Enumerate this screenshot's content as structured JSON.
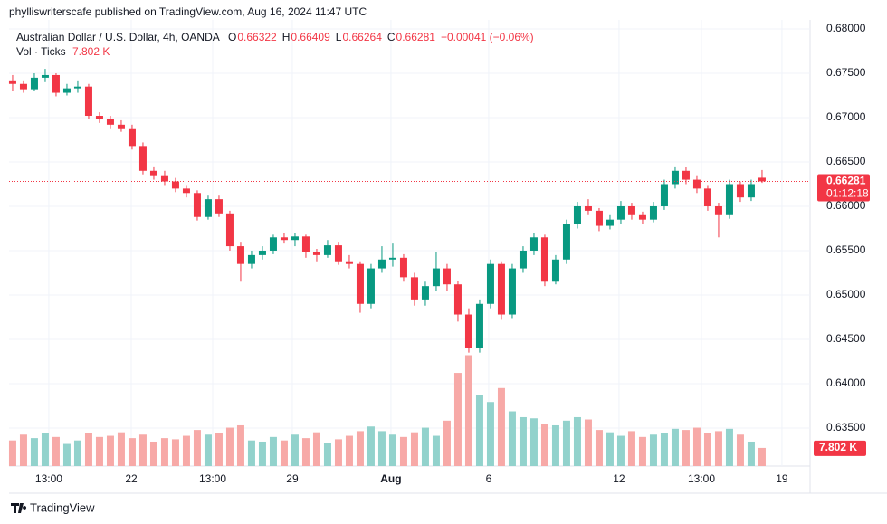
{
  "header": {
    "publisher": "phylliswriterscafe published on TradingView.com, Aug 16, 2024 11:47 UTC"
  },
  "footer": {
    "brand": "TradingView"
  },
  "chart_data": {
    "type": "candlestick",
    "symbol": "Australian Dollar / U.S. Dollar, 4h, OANDA",
    "ohlc_letters": [
      "O",
      "H",
      "L",
      "C"
    ],
    "change": "−0.00041 (−0.06%)",
    "volume_title": "Vol · Ticks",
    "last_volume_label": "7.802 K",
    "countdown": "01:12:18",
    "up_color": "#089981",
    "down_color": "#f23645",
    "volume_up_color": "#92d2cc",
    "volume_down_color": "#f7a9a7",
    "grid": true,
    "candles": [
      [
        0.6742,
        0.6748,
        0.673,
        0.6738
      ],
      [
        0.6738,
        0.6742,
        0.6728,
        0.6732
      ],
      [
        0.6732,
        0.675,
        0.673,
        0.6745
      ],
      [
        0.6745,
        0.6755,
        0.674,
        0.6748
      ],
      [
        0.6748,
        0.675,
        0.6724,
        0.6728
      ],
      [
        0.6728,
        0.6738,
        0.6725,
        0.6733
      ],
      [
        0.6733,
        0.6742,
        0.6728,
        0.6735
      ],
      [
        0.6735,
        0.6738,
        0.6698,
        0.6702
      ],
      [
        0.6702,
        0.6706,
        0.6694,
        0.6698
      ],
      [
        0.6698,
        0.6702,
        0.6688,
        0.6692
      ],
      [
        0.6692,
        0.6697,
        0.6684,
        0.6688
      ],
      [
        0.6688,
        0.6692,
        0.6664,
        0.6668
      ],
      [
        0.6668,
        0.6672,
        0.6636,
        0.664
      ],
      [
        0.664,
        0.6645,
        0.663,
        0.6635
      ],
      [
        0.6635,
        0.664,
        0.6624,
        0.6628
      ],
      [
        0.6628,
        0.6632,
        0.6616,
        0.662
      ],
      [
        0.662,
        0.6624,
        0.661,
        0.6615
      ],
      [
        0.6615,
        0.6618,
        0.6584,
        0.6588
      ],
      [
        0.6588,
        0.6612,
        0.6585,
        0.6608
      ],
      [
        0.6608,
        0.6612,
        0.6588,
        0.6592
      ],
      [
        0.6592,
        0.6595,
        0.655,
        0.6555
      ],
      [
        0.6555,
        0.656,
        0.6515,
        0.6535
      ],
      [
        0.6535,
        0.655,
        0.653,
        0.6545
      ],
      [
        0.6545,
        0.6555,
        0.654,
        0.655
      ],
      [
        0.655,
        0.6568,
        0.6546,
        0.6565
      ],
      [
        0.6565,
        0.657,
        0.6558,
        0.6562
      ],
      [
        0.6562,
        0.657,
        0.6555,
        0.6566
      ],
      [
        0.6566,
        0.6568,
        0.6542,
        0.6548
      ],
      [
        0.6548,
        0.6552,
        0.6538,
        0.6545
      ],
      [
        0.6545,
        0.6562,
        0.6542,
        0.6556
      ],
      [
        0.6556,
        0.656,
        0.6534,
        0.6538
      ],
      [
        0.6538,
        0.6545,
        0.653,
        0.6535
      ],
      [
        0.6535,
        0.6538,
        0.648,
        0.649
      ],
      [
        0.649,
        0.6535,
        0.6485,
        0.653
      ],
      [
        0.653,
        0.6555,
        0.6525,
        0.654
      ],
      [
        0.654,
        0.6558,
        0.6532,
        0.6542
      ],
      [
        0.6542,
        0.6546,
        0.6515,
        0.652
      ],
      [
        0.652,
        0.6525,
        0.6488,
        0.6495
      ],
      [
        0.6495,
        0.6515,
        0.6488,
        0.651
      ],
      [
        0.651,
        0.6548,
        0.6505,
        0.653
      ],
      [
        0.653,
        0.6535,
        0.6505,
        0.6512
      ],
      [
        0.6512,
        0.6516,
        0.647,
        0.6478
      ],
      [
        0.6478,
        0.6485,
        0.6435,
        0.644
      ],
      [
        0.644,
        0.6495,
        0.6435,
        0.649
      ],
      [
        0.649,
        0.654,
        0.6485,
        0.6535
      ],
      [
        0.6535,
        0.6538,
        0.6472,
        0.6478
      ],
      [
        0.6478,
        0.6535,
        0.6474,
        0.653
      ],
      [
        0.653,
        0.6555,
        0.6525,
        0.655
      ],
      [
        0.655,
        0.657,
        0.6545,
        0.6565
      ],
      [
        0.6565,
        0.6568,
        0.651,
        0.6515
      ],
      [
        0.6515,
        0.6545,
        0.6512,
        0.654
      ],
      [
        0.654,
        0.6585,
        0.6535,
        0.658
      ],
      [
        0.658,
        0.6605,
        0.6575,
        0.66
      ],
      [
        0.66,
        0.6608,
        0.659,
        0.6595
      ],
      [
        0.6595,
        0.6598,
        0.6572,
        0.6578
      ],
      [
        0.6578,
        0.659,
        0.6574,
        0.6585
      ],
      [
        0.6585,
        0.6606,
        0.658,
        0.66
      ],
      [
        0.66,
        0.6604,
        0.6585,
        0.659
      ],
      [
        0.659,
        0.6594,
        0.658,
        0.6585
      ],
      [
        0.6585,
        0.6605,
        0.6582,
        0.66
      ],
      [
        0.66,
        0.663,
        0.6596,
        0.6625
      ],
      [
        0.6625,
        0.6645,
        0.662,
        0.664
      ],
      [
        0.664,
        0.6644,
        0.6625,
        0.663
      ],
      [
        0.663,
        0.6635,
        0.6615,
        0.662
      ],
      [
        0.662,
        0.6624,
        0.6595,
        0.66
      ],
      [
        0.66,
        0.6604,
        0.6565,
        0.659
      ],
      [
        0.659,
        0.663,
        0.6586,
        0.6625
      ],
      [
        0.6625,
        0.6628,
        0.6605,
        0.661
      ],
      [
        0.661,
        0.663,
        0.6606,
        0.6625
      ],
      [
        0.66322,
        0.66409,
        0.66264,
        0.66281
      ]
    ],
    "volume": [
      11000,
      13500,
      12000,
      14000,
      12500,
      9500,
      11000,
      14000,
      12500,
      13000,
      14500,
      12000,
      13500,
      10500,
      12000,
      11500,
      13000,
      15500,
      13500,
      14000,
      16500,
      17500,
      11000,
      10500,
      12500,
      11000,
      13500,
      12000,
      14500,
      10000,
      11500,
      13000,
      15000,
      17000,
      15000,
      13500,
      12500,
      14500,
      16500,
      13000,
      19500,
      40000,
      47600,
      30500,
      27500,
      33500,
      23500,
      21000,
      20500,
      18000,
      17500,
      19500,
      21000,
      20000,
      15500,
      14500,
      13000,
      15000,
      12500,
      13500,
      14000,
      16000,
      15500,
      16500,
      14000,
      15000,
      16000,
      13500,
      10500,
      7802
    ],
    "volume_ylim": [
      0,
      54600
    ],
    "xlim": [
      -0.33,
      73.42
    ],
    "xticks": [
      {
        "value": 3.33,
        "label": "13:00"
      },
      {
        "value": 10.92,
        "label": "22"
      },
      {
        "value": 18.42,
        "label": "13:00"
      },
      {
        "value": 25.75,
        "label": "29"
      },
      {
        "value": 34.83,
        "label": "Aug"
      },
      {
        "value": 43.83,
        "label": "6"
      },
      {
        "value": 55.83,
        "label": "12"
      },
      {
        "value": 63.42,
        "label": "13:00"
      },
      {
        "value": 70.83,
        "label": "19"
      }
    ],
    "ylim": [
      0.63071,
      0.68102
    ],
    "yticks": [
      {
        "value": 0.635,
        "label": "0.63500"
      },
      {
        "value": 0.64,
        "label": "0.64000"
      },
      {
        "value": 0.645,
        "label": "0.64500"
      },
      {
        "value": 0.65,
        "label": "0.65000"
      },
      {
        "value": 0.655,
        "label": "0.65500"
      },
      {
        "value": 0.66,
        "label": "0.66000"
      },
      {
        "value": 0.665,
        "label": "0.66500"
      },
      {
        "value": 0.67,
        "label": "0.67000"
      },
      {
        "value": 0.675,
        "label": "0.67500"
      },
      {
        "value": 0.68,
        "label": "0.68000"
      }
    ]
  }
}
